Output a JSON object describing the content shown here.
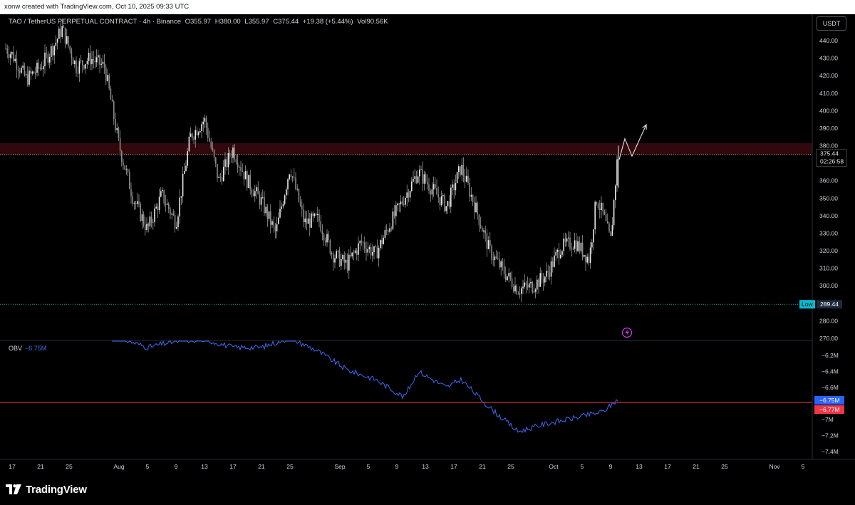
{
  "header": {
    "credit": "xonw created with TradingView.com, Oct 10, 2025 09:33 UTC"
  },
  "legend": {
    "symbol": "TAO / TetherUS PERPETUAL CONTRACT · 4h · Binance",
    "open": "O355.97",
    "high": "H380.00",
    "low": "L355.97",
    "close": "C375.44",
    "change": "+19.38 (+5.44%)",
    "volume": "Vol90.56K"
  },
  "currency": "USDT",
  "price_axis": {
    "ticks": [
      "440.00",
      "430.00",
      "420.00",
      "410.00",
      "400.00",
      "390.00",
      "380.00",
      "370.00",
      "360.00",
      "350.00",
      "340.00",
      "330.00",
      "320.00",
      "310.00",
      "300.00",
      "290.00",
      "280.00",
      "270.00"
    ]
  },
  "last_price": {
    "value": "375.44",
    "countdown": "02:26:58"
  },
  "low_marker": {
    "label": "Low",
    "value": "289.44"
  },
  "obv": {
    "label": "OBV",
    "value": "−6.75M",
    "ticks": [
      "−6.2M",
      "−6.4M",
      "−6.6M",
      "−7M",
      "−7.2M",
      "−7.4M"
    ],
    "badge_value": "−6.75M",
    "badge_line": "−6.77M"
  },
  "time_axis": {
    "labels": [
      "17",
      "21",
      "25",
      "Aug",
      "5",
      "9",
      "13",
      "17",
      "21",
      "25",
      "Sep",
      "5",
      "9",
      "13",
      "17",
      "21",
      "25",
      "Oct",
      "5",
      "9",
      "13",
      "17",
      "21",
      "25",
      "Nov",
      "5"
    ]
  },
  "brand": {
    "name": "TradingView"
  },
  "colors": {
    "bg": "#000000",
    "candle": "#c8c8c8",
    "obv": "#3d6bf5",
    "resist": "#f23645",
    "badge_blue": "#2962ff",
    "badge_red": "#f23645",
    "low_badge": "#00bcd4"
  },
  "chart_data": {
    "type": "candlestick",
    "series": [
      {
        "name": "TAO / TetherUS PERPETUAL CONTRACT",
        "points": [
          {
            "x": "Jul 15",
            "y": 440
          },
          {
            "x": "Jul 17",
            "y": 432
          },
          {
            "x": "Jul 19",
            "y": 418
          },
          {
            "x": "Jul 21",
            "y": 425
          },
          {
            "x": "Jul 23",
            "y": 438
          },
          {
            "x": "Jul 24",
            "y": 447
          },
          {
            "x": "Jul 26",
            "y": 425
          },
          {
            "x": "Jul 28",
            "y": 430
          },
          {
            "x": "Jul 30",
            "y": 425
          },
          {
            "x": "Aug 1",
            "y": 380
          },
          {
            "x": "Aug 3",
            "y": 350
          },
          {
            "x": "Aug 5",
            "y": 332
          },
          {
            "x": "Aug 7",
            "y": 352
          },
          {
            "x": "Aug 9",
            "y": 336
          },
          {
            "x": "Aug 11",
            "y": 385
          },
          {
            "x": "Aug 13",
            "y": 395
          },
          {
            "x": "Aug 15",
            "y": 360
          },
          {
            "x": "Aug 17",
            "y": 378
          },
          {
            "x": "Aug 19",
            "y": 360
          },
          {
            "x": "Aug 21",
            "y": 348
          },
          {
            "x": "Aug 23",
            "y": 330
          },
          {
            "x": "Aug 25",
            "y": 368
          },
          {
            "x": "Aug 27",
            "y": 336
          },
          {
            "x": "Aug 29",
            "y": 338
          },
          {
            "x": "Aug 31",
            "y": 318
          },
          {
            "x": "Sep 2",
            "y": 312
          },
          {
            "x": "Sep 4",
            "y": 325
          },
          {
            "x": "Sep 6",
            "y": 318
          },
          {
            "x": "Sep 8",
            "y": 335
          },
          {
            "x": "Sep 10",
            "y": 350
          },
          {
            "x": "Sep 12",
            "y": 365
          },
          {
            "x": "Sep 14",
            "y": 355
          },
          {
            "x": "Sep 16",
            "y": 345
          },
          {
            "x": "Sep 18",
            "y": 368
          },
          {
            "x": "Sep 20",
            "y": 345
          },
          {
            "x": "Sep 22",
            "y": 320
          },
          {
            "x": "Sep 24",
            "y": 308
          },
          {
            "x": "Sep 26",
            "y": 298
          },
          {
            "x": "Sep 28",
            "y": 300
          },
          {
            "x": "Sep 30",
            "y": 306
          },
          {
            "x": "Oct 2",
            "y": 322
          },
          {
            "x": "Oct 4",
            "y": 325
          },
          {
            "x": "Oct 6",
            "y": 315
          },
          {
            "x": "Oct 7",
            "y": 350
          },
          {
            "x": "Oct 8",
            "y": 340
          },
          {
            "x": "Oct 9",
            "y": 325
          },
          {
            "x": "Oct 10",
            "y": 375.44
          }
        ]
      },
      {
        "name": "OBV",
        "points": [
          {
            "x": "Aug 1",
            "y": -5.98
          },
          {
            "x": "Aug 5",
            "y": -6.1
          },
          {
            "x": "Aug 9",
            "y": -6.02
          },
          {
            "x": "Aug 13",
            "y": -6.0
          },
          {
            "x": "Aug 17",
            "y": -6.1
          },
          {
            "x": "Aug 21",
            "y": -6.1
          },
          {
            "x": "Aug 25",
            "y": -5.98
          },
          {
            "x": "Aug 29",
            "y": -6.15
          },
          {
            "x": "Sep 2",
            "y": -6.38
          },
          {
            "x": "Sep 6",
            "y": -6.5
          },
          {
            "x": "Sep 10",
            "y": -6.72
          },
          {
            "x": "Sep 12",
            "y": -6.4
          },
          {
            "x": "Sep 16",
            "y": -6.6
          },
          {
            "x": "Sep 18",
            "y": -6.5
          },
          {
            "x": "Sep 22",
            "y": -6.85
          },
          {
            "x": "Sep 26",
            "y": -7.15
          },
          {
            "x": "Sep 30",
            "y": -7.05
          },
          {
            "x": "Oct 4",
            "y": -6.98
          },
          {
            "x": "Oct 8",
            "y": -6.9
          },
          {
            "x": "Oct 10",
            "y": -6.75
          }
        ]
      }
    ],
    "ylim": [
      268,
      450
    ],
    "obv_ylim": [
      -7.5,
      -6.0
    ],
    "resistance_zone": [
      375,
      381
    ],
    "low_level": 289.44,
    "projection": [
      {
        "x": "Oct 10",
        "y": 372
      },
      {
        "x": "Oct 11",
        "y": 384
      },
      {
        "x": "Oct 12",
        "y": 374
      },
      {
        "x": "Oct 14",
        "y": 392
      }
    ]
  }
}
